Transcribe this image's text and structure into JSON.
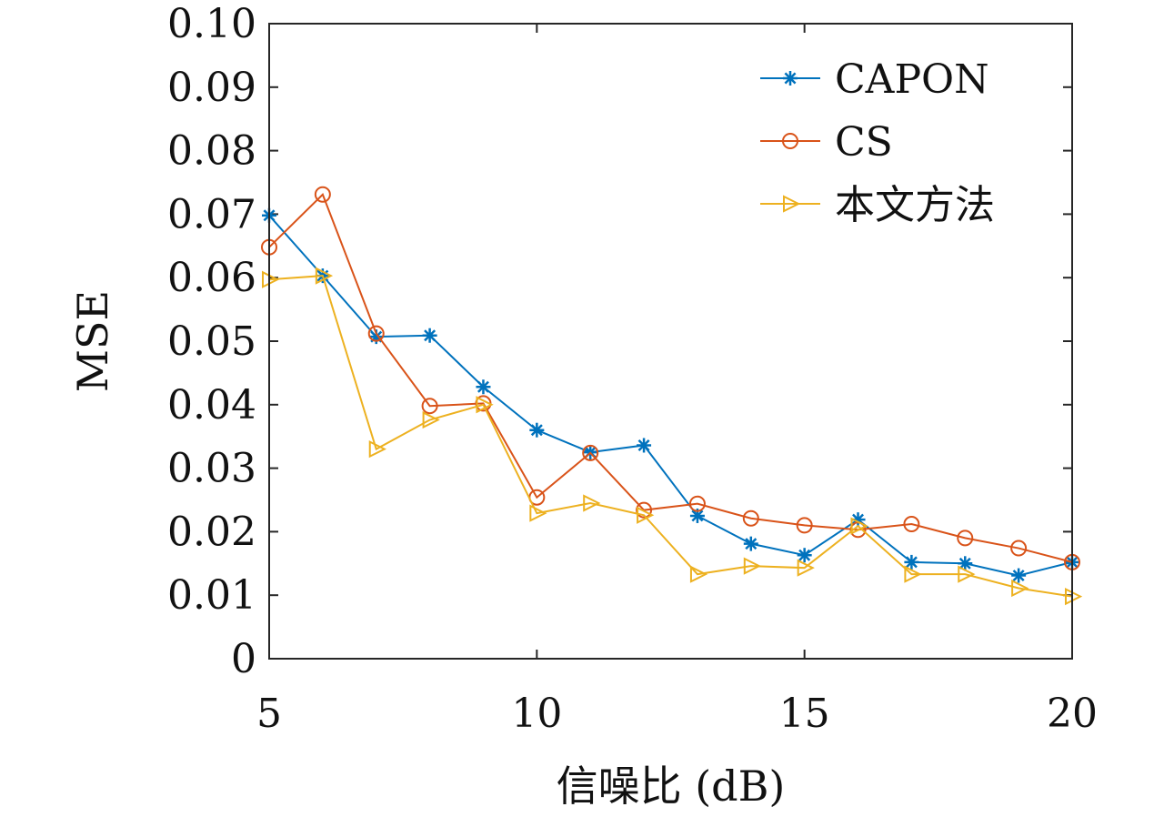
{
  "chart_data": {
    "type": "line",
    "title": "",
    "xlabel": "信噪比 (dB)",
    "ylabel": "MSE",
    "xlim": [
      5,
      20
    ],
    "ylim": [
      0,
      0.1
    ],
    "xticks": [
      5,
      10,
      15,
      20
    ],
    "xtick_labels": [
      "5",
      "10",
      "15",
      "20"
    ],
    "yticks": [
      0,
      0.01,
      0.02,
      0.03,
      0.04,
      0.05,
      0.06,
      0.07,
      0.08,
      0.09,
      0.1
    ],
    "ytick_labels": [
      "0",
      "0.01",
      "0.02",
      "0.03",
      "0.04",
      "0.05",
      "0.06",
      "0.07",
      "0.08",
      "0.09",
      "0.10"
    ],
    "grid": false,
    "legend_position": "top-right",
    "x": [
      5,
      6,
      7,
      8,
      9,
      10,
      11,
      12,
      13,
      14,
      15,
      16,
      17,
      18,
      19,
      20
    ],
    "series": [
      {
        "name": "CAPON",
        "color": "#0072BD",
        "marker": "asterisk",
        "values": [
          0.0698,
          0.0603,
          0.0507,
          0.0509,
          0.0428,
          0.036,
          0.0325,
          0.0336,
          0.0225,
          0.0181,
          0.0163,
          0.0219,
          0.0152,
          0.015,
          0.0131,
          0.0152
        ]
      },
      {
        "name": "CS",
        "color": "#D95319",
        "marker": "circle",
        "values": [
          0.0648,
          0.0731,
          0.0512,
          0.0398,
          0.0402,
          0.0254,
          0.0324,
          0.0234,
          0.0244,
          0.0221,
          0.021,
          0.0203,
          0.0212,
          0.019,
          0.0174,
          0.0152
        ]
      },
      {
        "name": "本文方法",
        "color": "#EDB120",
        "marker": "triangle-right",
        "values": [
          0.0597,
          0.0603,
          0.033,
          0.0376,
          0.04,
          0.0229,
          0.0245,
          0.0226,
          0.0133,
          0.0146,
          0.0143,
          0.0209,
          0.0133,
          0.0133,
          0.0111,
          0.0098
        ]
      }
    ]
  }
}
